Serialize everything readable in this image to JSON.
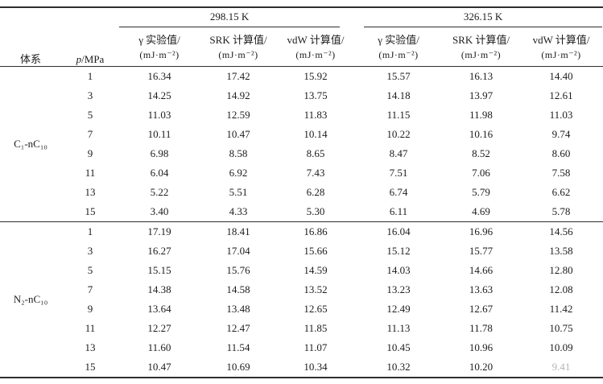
{
  "page": {
    "background": "#ffffff",
    "ink_color": "#1c1c1c",
    "rule_color": "#2e2e2e",
    "faded_text_color": "#b5b5b5"
  },
  "table": {
    "header": {
      "system_label": "体系",
      "pressure_symbol": "p",
      "pressure_rest": "/MPa",
      "temp_groups": [
        {
          "label": "298.15 K",
          "columns": [
            {
              "title": "γ 实验值/",
              "unit": "(mJ·m⁻²)"
            },
            {
              "title": "SRK 计算值/",
              "unit": "(mJ·m⁻²)"
            },
            {
              "title": "vdW 计算值/",
              "unit": "(mJ·m⁻²)"
            }
          ]
        },
        {
          "label": "326.15 K",
          "columns": [
            {
              "title": "γ 实验值/",
              "unit": "(mJ·m⁻²)"
            },
            {
              "title": "SRK 计算值/",
              "unit": "(mJ·m⁻²)"
            },
            {
              "title": "vdW 计算值/",
              "unit": "(mJ·m⁻²)"
            }
          ]
        }
      ]
    },
    "blocks": [
      {
        "system": "C₁-nC₁₀",
        "rows": [
          {
            "p": "1",
            "values": [
              "16.34",
              "17.42",
              "15.92",
              "15.57",
              "16.13",
              "14.40"
            ]
          },
          {
            "p": "3",
            "values": [
              "14.25",
              "14.92",
              "13.75",
              "14.18",
              "13.97",
              "12.61"
            ]
          },
          {
            "p": "5",
            "values": [
              "11.03",
              "12.59",
              "11.83",
              "11.15",
              "11.98",
              "11.03"
            ]
          },
          {
            "p": "7",
            "values": [
              "10.11",
              "10.47",
              "10.14",
              "10.22",
              "10.16",
              "9.74"
            ]
          },
          {
            "p": "9",
            "values": [
              "6.98",
              "8.58",
              "8.65",
              "8.47",
              "8.52",
              "8.60"
            ]
          },
          {
            "p": "11",
            "values": [
              "6.04",
              "6.92",
              "7.43",
              "7.51",
              "7.06",
              "7.58"
            ]
          },
          {
            "p": "13",
            "values": [
              "5.22",
              "5.51",
              "6.28",
              "6.74",
              "5.79",
              "6.62"
            ]
          },
          {
            "p": "15",
            "values": [
              "3.40",
              "4.33",
              "5.30",
              "6.11",
              "4.69",
              "5.78"
            ]
          }
        ]
      },
      {
        "system": "N₂-nC₁₀",
        "rows": [
          {
            "p": "1",
            "values": [
              "17.19",
              "18.41",
              "16.86",
              "16.04",
              "16.96",
              "14.56"
            ]
          },
          {
            "p": "3",
            "values": [
              "16.27",
              "17.04",
              "15.66",
              "15.12",
              "15.77",
              "13.58"
            ]
          },
          {
            "p": "5",
            "values": [
              "15.15",
              "15.76",
              "14.59",
              "14.03",
              "14.66",
              "12.80"
            ]
          },
          {
            "p": "7",
            "values": [
              "14.38",
              "14.58",
              "13.52",
              "13.23",
              "13.63",
              "12.08"
            ]
          },
          {
            "p": "9",
            "values": [
              "13.64",
              "13.48",
              "12.65",
              "12.49",
              "12.67",
              "11.42"
            ]
          },
          {
            "p": "11",
            "values": [
              "12.27",
              "12.47",
              "11.85",
              "11.13",
              "11.78",
              "10.75"
            ]
          },
          {
            "p": "13",
            "values": [
              "11.60",
              "11.54",
              "11.07",
              "10.45",
              "10.96",
              "10.09"
            ]
          },
          {
            "p": "15",
            "values": [
              "10.47",
              "10.69",
              "10.34",
              "10.32",
              "10.20",
              "9.41"
            ]
          }
        ]
      }
    ],
    "faded_cell": {
      "block": 1,
      "row": 7,
      "col": 5
    }
  }
}
